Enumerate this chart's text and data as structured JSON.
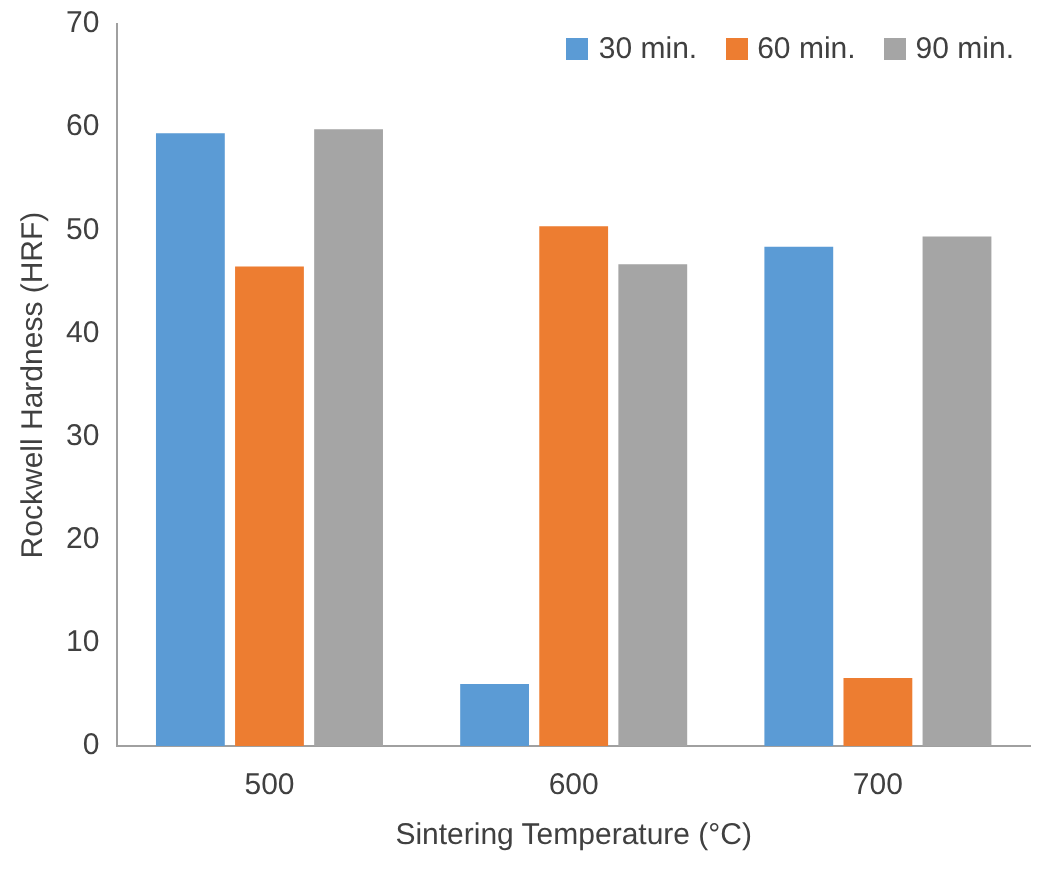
{
  "chart_data": {
    "type": "bar",
    "xlabel": "Sintering Temperature (°C)",
    "ylabel": "Rockwell Hardness (HRF)",
    "categories": [
      "500",
      "600",
      "700"
    ],
    "series": [
      {
        "name": "30 min.",
        "color": "#5b9bd5",
        "values": [
          59.4,
          6.0,
          48.4
        ]
      },
      {
        "name": "60 min.",
        "color": "#ed7d31",
        "values": [
          46.5,
          50.4,
          6.6
        ]
      },
      {
        "name": "90 min.",
        "color": "#a5a5a5",
        "values": [
          59.8,
          46.7,
          49.4
        ]
      }
    ],
    "ylim": [
      0,
      70
    ],
    "yticks": [
      0,
      10,
      20,
      30,
      40,
      50,
      60,
      70
    ],
    "grid": false,
    "legend": "top right"
  }
}
